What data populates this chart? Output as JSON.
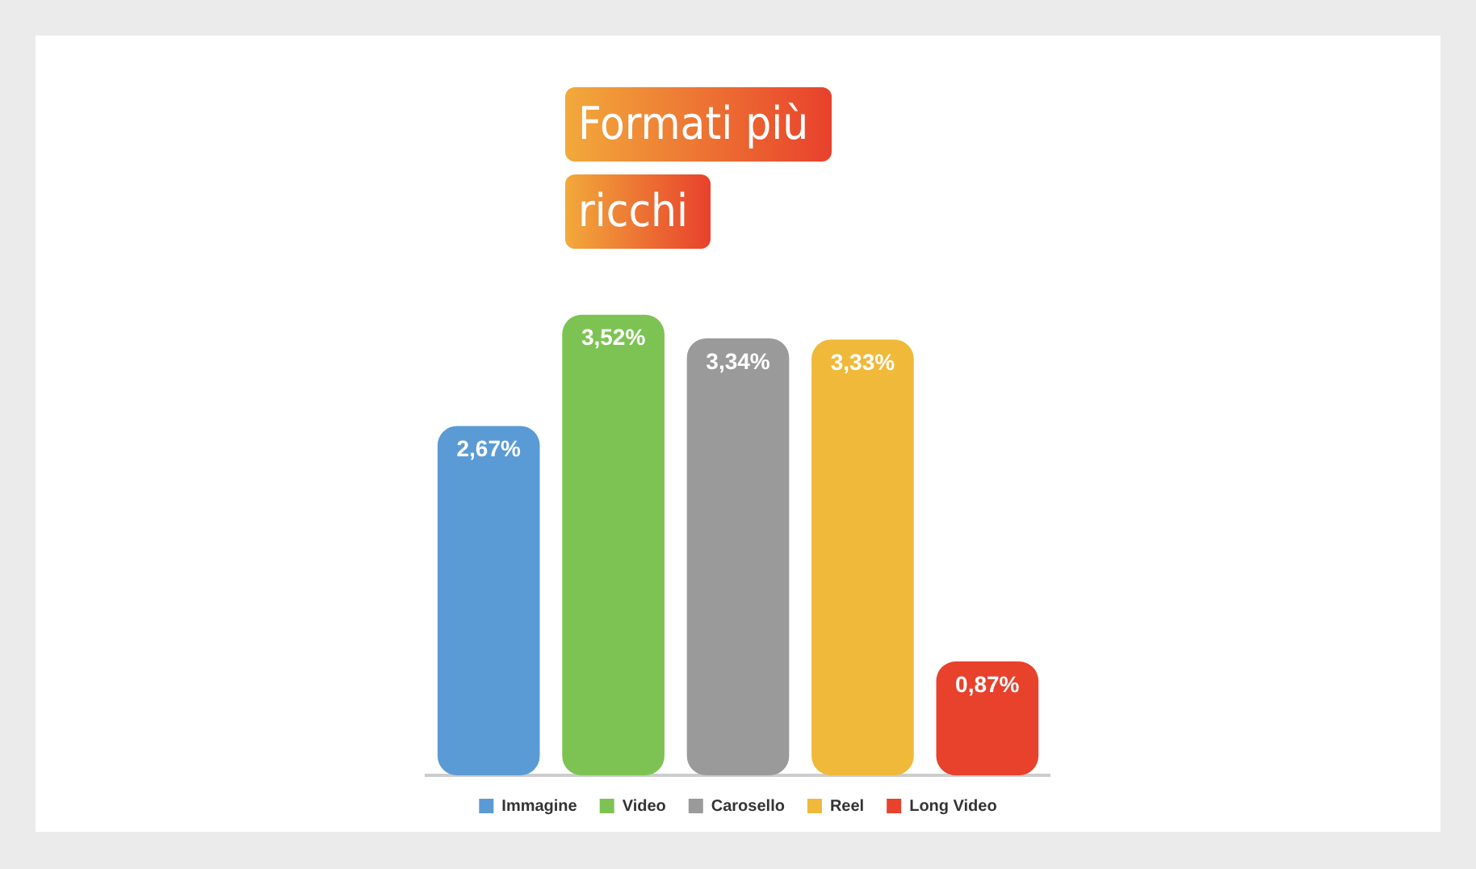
{
  "chart_data": {
    "type": "bar",
    "title": "Formati più ricchi",
    "categories": [
      null
    ],
    "series": [
      {
        "name": "Immagine",
        "color": "#5b9bd5",
        "values": [
          2.67
        ],
        "value_labels": [
          "2,67%"
        ]
      },
      {
        "name": "Video",
        "color": "#7dc353",
        "values": [
          3.52
        ],
        "value_labels": [
          "3,52%"
        ]
      },
      {
        "name": "Carosello",
        "color": "#9a9a9a",
        "values": [
          3.34
        ],
        "value_labels": [
          "3,34%"
        ]
      },
      {
        "name": "Reel",
        "color": "#f0b93a",
        "values": [
          3.33
        ],
        "value_labels": [
          "3,33%"
        ]
      },
      {
        "name": "Long Video",
        "color": "#e8412c",
        "values": [
          0.87
        ],
        "value_labels": [
          "0,87%"
        ]
      }
    ],
    "tick_labels": false,
    "grid": false,
    "legend": "bottom"
  }
}
